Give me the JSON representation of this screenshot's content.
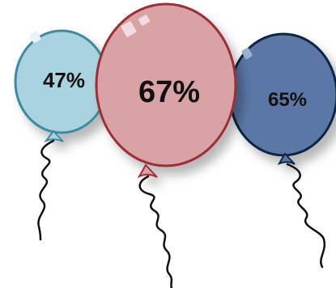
{
  "balloons": [
    {
      "label": "47%",
      "color": "#a9d3df",
      "stroke": "#3f8aa0",
      "name": "teal"
    },
    {
      "label": "67%",
      "color": "#d9a3a6",
      "stroke": "#9c2f36",
      "name": "red"
    },
    {
      "label": "65%",
      "color": "#5a77a6",
      "stroke": "#0f2545",
      "name": "navy"
    }
  ]
}
